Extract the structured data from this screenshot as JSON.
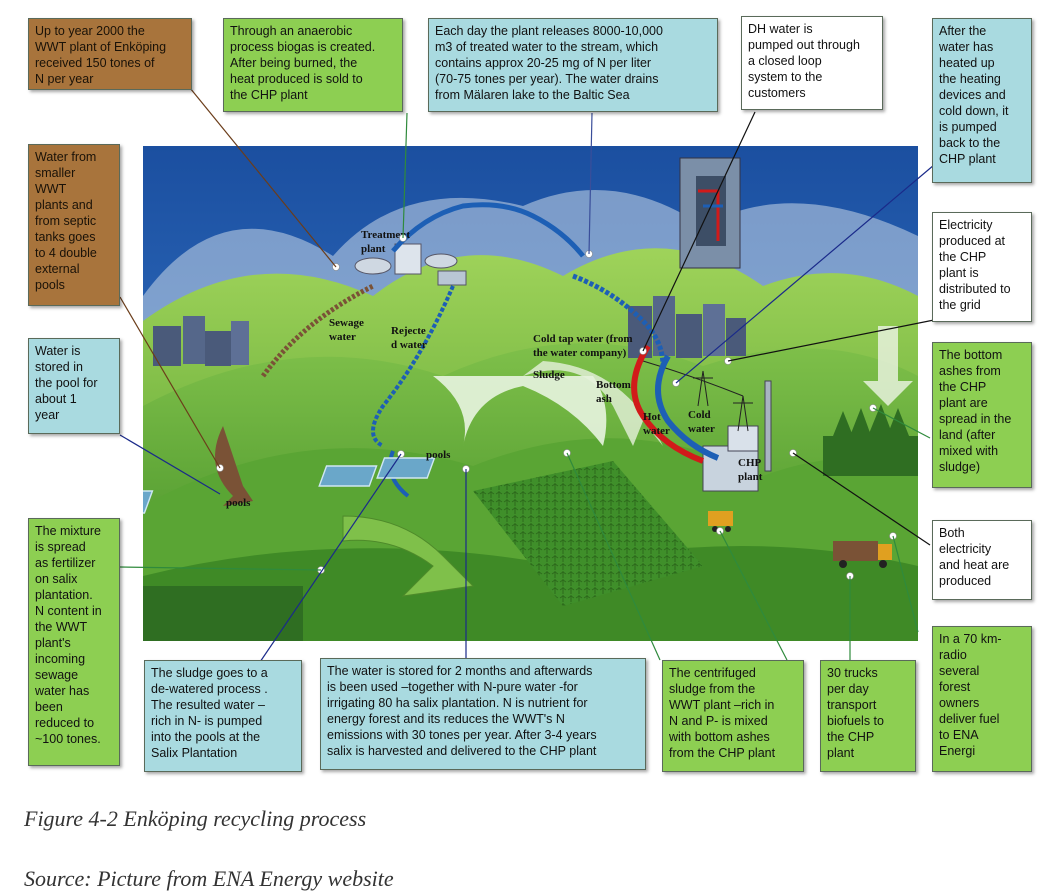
{
  "boxes": {
    "wwt_nitrogen": "Up to year 2000 the\nWWT plant of Enköping\nreceived    150 tones of\nN per year",
    "biogas": "Through an anaerobic\nprocess biogas is created.\nAfter being burned, the\nheat produced is sold to\nthe CHP plant",
    "treated_water": "Each day the plant releases 8000-10,000\nm3 of treated water to the stream, which\ncontains approx 20-25 mg of N per liter\n(70-75 tones per year).  The water drains\nfrom Mälaren lake to the Baltic Sea",
    "dh_water": "DH water is\npumped out through\na closed  loop\nsystem to the\ncustomers",
    "heated_water": "After the\nwater has\nheated up\nthe heating\ndevices and\ncold down, it\nis pumped\nback to the\nCHP plant",
    "smaller_wwt": "Water from\nsmaller\nWWT\nplants and\nfrom septic\ntanks goes\nto 4 double\nexternal\npools",
    "electricity_grid": "Electricity\nproduced at\nthe CHP\nplant is\ndistributed to\nthe grid",
    "stored_pool": "Water is\nstored in\nthe pool for\nabout 1\nyear",
    "bottom_ashes": "The bottom\nashes from\nthe CHP\nplant are\nspread in the\nland (after\nmixed with\nsludge)",
    "mixture_fertilizer": "The mixture\nis spread\nas fertilizer\non salix\nplantation.\nN content in\nthe WWT\nplant's\nincoming\nsewage\nwater has\nbeen\nreduced to\n~100 tones.",
    "both_produced": "Both\nelectricity\nand heat are\nproduced",
    "sludge_dewatered": "The sludge goes to a\nde-watered process .\nThe resulted water –\nrich in N- is pumped\ninto the pools at the\nSalix Plantation",
    "salix_irrigation": "The water is stored for 2 months and afterwards\nis been used –together with N-pure water -for\nirrigating 80 ha salix plantation. N is nutrient for\nenergy forest and its reduces the WWT's N\nemissions with 30 tones per year. After 3-4 years\nsalix is harvested and delivered to the CHP plant",
    "centrifuged_sludge": "The centrifuged\nsludge from the\nWWT plant –rich in\nN and P- is mixed\nwith  bottom ashes\nfrom the CHP plant",
    "trucks": "30 trucks\nper day\ntransport\nbiofuels to\nthe CHP\nplant",
    "forest_owners": "In a 70 km-\nradio\nseveral\nforest\nowners\ndeliver fuel\nto ENA\nEnergi"
  },
  "scene_labels": {
    "treatment": "Treatment",
    "plant": "plant",
    "sewage": "Sewage",
    "water": "water",
    "rejected_1": "Rejecte",
    "rejected_2": "d water",
    "cold_tap_1": "Cold tap water (from",
    "cold_tap_2": "the water company)",
    "sludge": "Sludge",
    "bottom": "Bottom",
    "ash": "ash",
    "hot": "Hot",
    "hot_water": "water",
    "cold": "Cold",
    "cold_water": "water",
    "chp": "CHP",
    "chp_plant": "plant",
    "pools_left": "pools",
    "pools_right": "pools"
  },
  "caption": {
    "figure": "Figure 4-2 Enköping recycling process",
    "source": "Source: Picture from ENA Energy website"
  },
  "colors": {
    "brown_box": "#a8743c",
    "green_box": "#8dcf52",
    "cyan_box": "#a9dae0",
    "sky": "#1e56a8",
    "hill": "#6fb53a",
    "pipe_blue": "#1d5fb5",
    "pipe_red": "#d11a1a",
    "path_brown": "#7a5236"
  }
}
